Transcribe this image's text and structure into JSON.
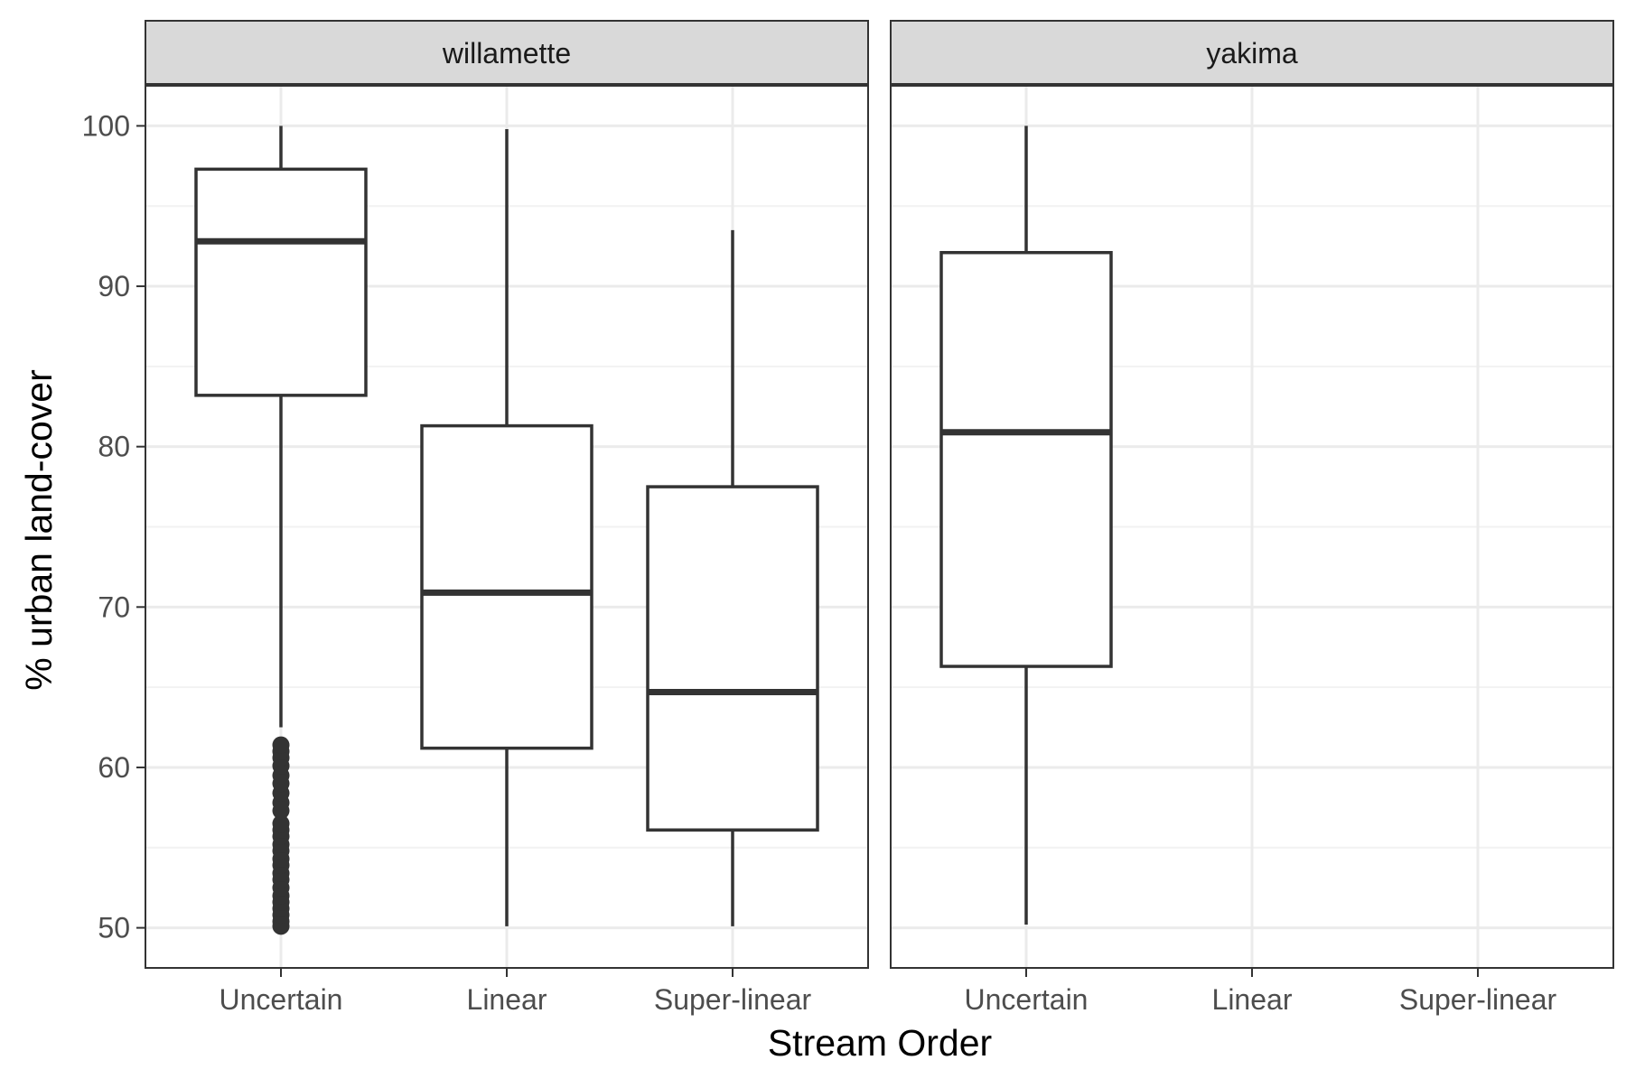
{
  "chart_data": {
    "type": "boxplot",
    "xlabel": "Stream Order",
    "ylabel": "% urban land-cover",
    "categories": [
      "Uncertain",
      "Linear",
      "Super-linear"
    ],
    "ylim": [
      47.5,
      102.5
    ],
    "y_ticks": [
      50,
      60,
      70,
      80,
      90,
      100
    ],
    "grid": true,
    "facets": [
      {
        "name": "willamette",
        "boxes": [
          {
            "category": "Uncertain",
            "whisker_low": 62.5,
            "q1": 83.2,
            "median": 92.8,
            "q3": 97.3,
            "whisker_high": 100.0,
            "outliers": [
              50.1,
              50.4,
              50.8,
              51.2,
              51.6,
              52.0,
              52.5,
              53.0,
              53.4,
              53.9,
              54.3,
              54.8,
              55.2,
              55.7,
              56.1,
              56.5,
              57.3,
              57.8,
              58.4,
              59.0,
              59.5,
              60.1,
              60.6,
              61.0,
              61.4
            ]
          },
          {
            "category": "Linear",
            "whisker_low": 50.1,
            "q1": 61.2,
            "median": 70.9,
            "q3": 81.3,
            "whisker_high": 99.8,
            "outliers": []
          },
          {
            "category": "Super-linear",
            "whisker_low": 50.1,
            "q1": 56.1,
            "median": 64.7,
            "q3": 77.5,
            "whisker_high": 93.5,
            "outliers": []
          }
        ]
      },
      {
        "name": "yakima",
        "boxes": [
          {
            "category": "Uncertain",
            "whisker_low": 50.2,
            "q1": 66.3,
            "median": 80.9,
            "q3": 92.1,
            "whisker_high": 100.0,
            "outliers": []
          }
        ]
      }
    ],
    "colors": {
      "box_line": "#333333",
      "panel_border": "#333333",
      "strip_fill": "#d9d9d9",
      "grid_major": "#ebebeb",
      "grid_minor": "#f2f2f2",
      "tick_label": "#4d4d4d",
      "text": "#000000"
    }
  }
}
